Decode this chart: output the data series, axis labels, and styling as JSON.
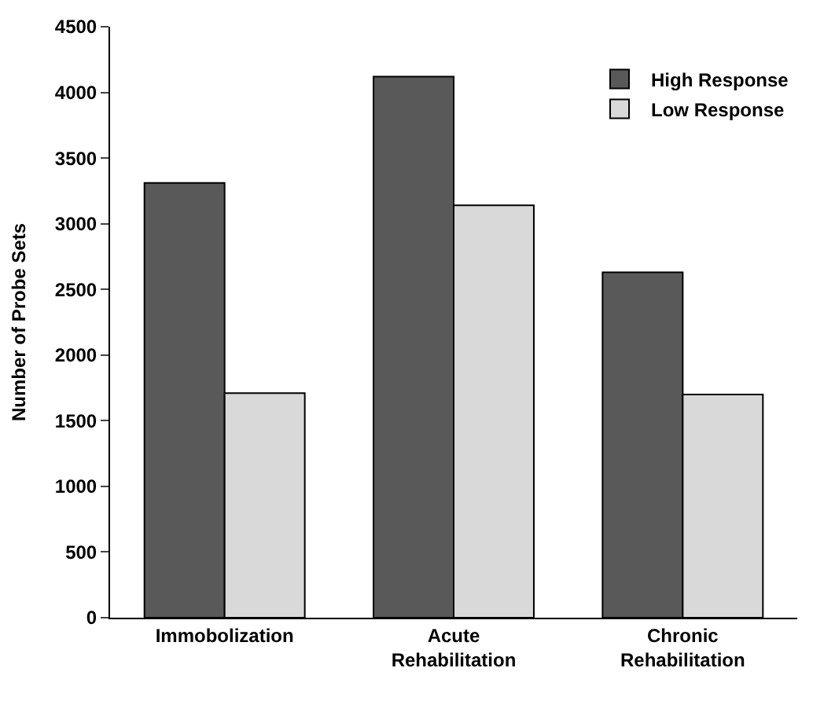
{
  "chart_data": {
    "type": "bar",
    "ylabel": "Number of Probe Sets",
    "categories": [
      "Immobolization",
      "Acute\nRehabilitation",
      "Chronic\nRehabilitation"
    ],
    "series": [
      {
        "name": "High Response",
        "color": "#595959",
        "values": [
          3310,
          4120,
          2630
        ]
      },
      {
        "name": "Low Response",
        "color": "#d9d9d9",
        "values": [
          1710,
          3140,
          1700
        ]
      }
    ],
    "ylim": [
      0,
      4500
    ],
    "yticks": [
      0,
      500,
      1000,
      1500,
      2000,
      2500,
      3000,
      3500,
      4000,
      4500
    ],
    "grid": false,
    "legend": "top right"
  }
}
